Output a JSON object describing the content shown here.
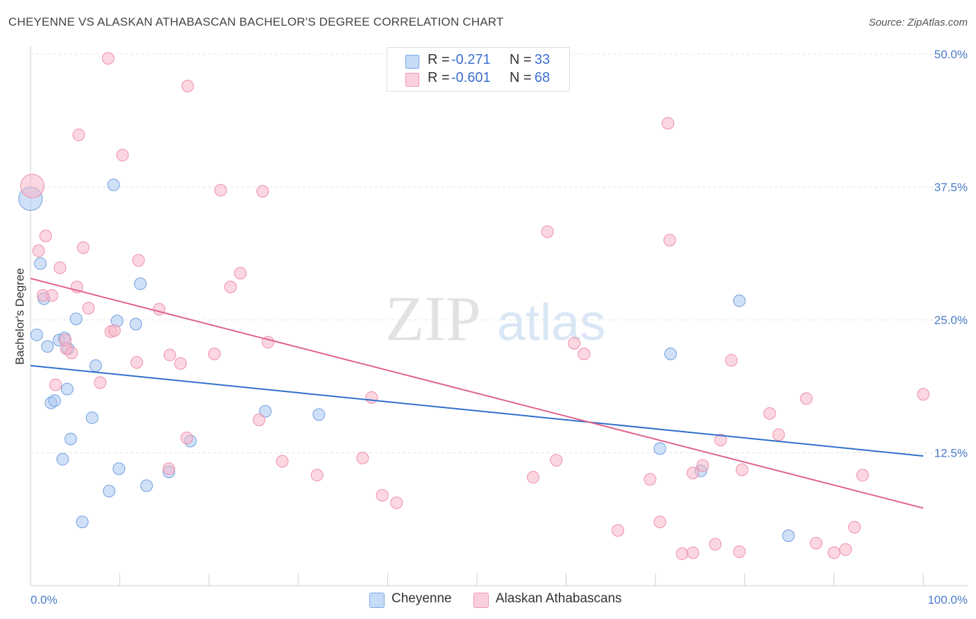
{
  "title": "CHEYENNE VS ALASKAN ATHABASCAN BACHELOR'S DEGREE CORRELATION CHART",
  "source": "Source: ZipAtlas.com",
  "watermark": {
    "zip": "ZIP",
    "atlas": "atlas"
  },
  "legend_stats": [
    {
      "r_label": "R =",
      "r_value": "-0.271",
      "n_label": "N =",
      "n_value": "33",
      "color": "#a9c7f0"
    },
    {
      "r_label": "R =",
      "r_value": "-0.601",
      "n_label": "N =",
      "n_value": "68",
      "color": "#f7b6c9"
    }
  ],
  "chart_data": {
    "type": "scatter",
    "title": "CHEYENNE VS ALASKAN ATHABASCAN BACHELOR'S DEGREE CORRELATION CHART",
    "xlabel": "",
    "ylabel": "Bachelor's Degree",
    "xlim": [
      0,
      100
    ],
    "ylim": [
      0,
      50
    ],
    "x_ticks": [
      "0.0%",
      "100.0%"
    ],
    "y_ticks": [
      {
        "value": 12.5,
        "label": "12.5%"
      },
      {
        "value": 25.0,
        "label": "25.0%"
      },
      {
        "value": 37.5,
        "label": "37.5%"
      },
      {
        "value": 50.0,
        "label": "50.0%"
      }
    ],
    "grid": "horizontal dashed",
    "legend_position": "bottom-center",
    "series": [
      {
        "name": "Cheyenne",
        "color": "#a9c7f0",
        "stroke": "#6f9fe0",
        "line_color": "#2f6fcc",
        "trend": [
          [
            0,
            20.7
          ],
          [
            100,
            12.2
          ]
        ],
        "points": [
          [
            0.0,
            36.4
          ],
          [
            1.1,
            30.3
          ],
          [
            1.5,
            27.0
          ],
          [
            0.7,
            23.6
          ],
          [
            1.9,
            22.5
          ],
          [
            3.2,
            23.1
          ],
          [
            4.2,
            22.3
          ],
          [
            5.1,
            25.1
          ],
          [
            3.8,
            23.3
          ],
          [
            7.3,
            20.7
          ],
          [
            4.1,
            18.5
          ],
          [
            2.3,
            17.2
          ],
          [
            2.7,
            17.4
          ],
          [
            6.9,
            15.8
          ],
          [
            4.5,
            13.8
          ],
          [
            3.6,
            11.9
          ],
          [
            9.7,
            24.9
          ],
          [
            11.8,
            24.6
          ],
          [
            12.3,
            28.4
          ],
          [
            9.3,
            37.7
          ],
          [
            9.9,
            11.0
          ],
          [
            8.8,
            8.9
          ],
          [
            13.0,
            9.4
          ],
          [
            15.5,
            10.7
          ],
          [
            17.9,
            13.6
          ],
          [
            26.3,
            16.4
          ],
          [
            32.3,
            16.1
          ],
          [
            5.8,
            6.0
          ],
          [
            70.5,
            12.9
          ],
          [
            71.7,
            21.8
          ],
          [
            75.1,
            10.8
          ],
          [
            79.4,
            26.8
          ],
          [
            84.9,
            4.7
          ]
        ]
      },
      {
        "name": "Alaskan Athabascans",
        "color": "#f7b6c9",
        "stroke": "#ee8fab",
        "line_color": "#e0628f",
        "trend": [
          [
            0,
            28.9
          ],
          [
            100,
            7.3
          ]
        ],
        "points": [
          [
            0.2,
            37.6
          ],
          [
            0.9,
            31.5
          ],
          [
            1.7,
            32.9
          ],
          [
            3.3,
            29.9
          ],
          [
            1.4,
            27.3
          ],
          [
            2.4,
            27.3
          ],
          [
            5.9,
            31.8
          ],
          [
            5.2,
            28.1
          ],
          [
            6.5,
            26.1
          ],
          [
            8.7,
            49.6
          ],
          [
            5.4,
            42.4
          ],
          [
            10.3,
            40.5
          ],
          [
            17.6,
            47.0
          ],
          [
            21.3,
            37.2
          ],
          [
            26.0,
            37.1
          ],
          [
            22.4,
            28.1
          ],
          [
            23.5,
            29.4
          ],
          [
            12.1,
            30.6
          ],
          [
            14.4,
            26.0
          ],
          [
            9.0,
            23.9
          ],
          [
            9.4,
            24.0
          ],
          [
            4.0,
            22.3
          ],
          [
            4.6,
            21.9
          ],
          [
            3.9,
            23.1
          ],
          [
            7.8,
            19.1
          ],
          [
            2.8,
            18.9
          ],
          [
            11.9,
            21.0
          ],
          [
            15.6,
            21.7
          ],
          [
            16.8,
            20.9
          ],
          [
            20.6,
            21.8
          ],
          [
            26.6,
            22.9
          ],
          [
            17.5,
            13.9
          ],
          [
            25.6,
            15.6
          ],
          [
            15.5,
            11.0
          ],
          [
            28.2,
            11.7
          ],
          [
            32.1,
            10.4
          ],
          [
            37.2,
            12.0
          ],
          [
            38.2,
            17.7
          ],
          [
            39.4,
            8.5
          ],
          [
            41.0,
            7.8
          ],
          [
            56.3,
            10.2
          ],
          [
            58.9,
            11.8
          ],
          [
            57.9,
            33.3
          ],
          [
            60.9,
            22.8
          ],
          [
            62.0,
            21.8
          ],
          [
            71.4,
            43.5
          ],
          [
            71.6,
            32.5
          ],
          [
            70.5,
            6.0
          ],
          [
            65.8,
            5.2
          ],
          [
            69.4,
            10.0
          ],
          [
            73.0,
            3.0
          ],
          [
            74.2,
            3.1
          ],
          [
            74.2,
            10.6
          ],
          [
            75.3,
            11.3
          ],
          [
            77.3,
            13.7
          ],
          [
            78.5,
            21.2
          ],
          [
            76.7,
            3.9
          ],
          [
            79.4,
            3.2
          ],
          [
            79.7,
            10.9
          ],
          [
            82.8,
            16.2
          ],
          [
            83.8,
            14.2
          ],
          [
            86.9,
            17.6
          ],
          [
            88.0,
            4.0
          ],
          [
            90.0,
            3.1
          ],
          [
            91.3,
            3.4
          ],
          [
            92.3,
            5.5
          ],
          [
            93.2,
            10.4
          ],
          [
            100.0,
            18.0
          ]
        ]
      }
    ]
  }
}
